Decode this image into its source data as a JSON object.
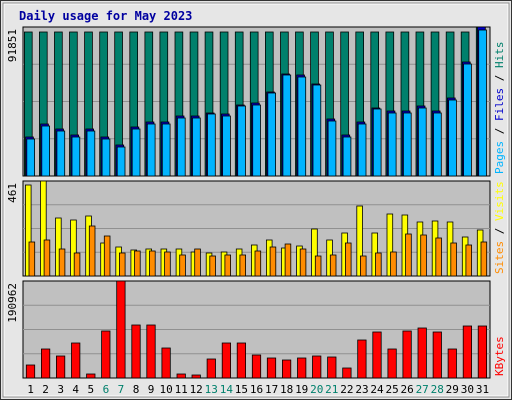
{
  "chart_data": {
    "title": "Daily usage for May 2023",
    "type": "bar",
    "categories": [
      "1",
      "2",
      "3",
      "4",
      "5",
      "6",
      "7",
      "8",
      "9",
      "10",
      "11",
      "12",
      "13",
      "14",
      "15",
      "16",
      "17",
      "18",
      "19",
      "20",
      "21",
      "22",
      "23",
      "24",
      "25",
      "26",
      "27",
      "28",
      "29",
      "30",
      "31"
    ],
    "weekend_days": [
      "6",
      "7",
      "13",
      "14",
      "20",
      "21",
      "27",
      "28"
    ],
    "panels": [
      {
        "id": "hits",
        "ymax_label": "91851",
        "ymax": 91851,
        "legend": [
          "Pages",
          "Files",
          "Hits"
        ],
        "series": [
          {
            "name": "Hits",
            "color": "#00806c",
            "values": [
              89000,
              89000,
              89000,
              89000,
              89000,
              89000,
              89000,
              89000,
              89000,
              89000,
              89000,
              89000,
              89000,
              89000,
              89000,
              89000,
              89000,
              89000,
              89000,
              89000,
              89000,
              89000,
              89000,
              89000,
              89000,
              89000,
              89000,
              89000,
              89000,
              89000,
              91851
            ]
          },
          {
            "name": "Files",
            "color": "#0000cc",
            "values": [
              24000,
              32000,
              29000,
              25000,
              29000,
              24000,
              19000,
              30000,
              33000,
              33000,
              37000,
              37000,
              39000,
              38000,
              44000,
              45000,
              52000,
              63000,
              62000,
              57000,
              35000,
              25000,
              33000,
              42000,
              40000,
              40000,
              43000,
              40000,
              48000,
              70000,
              91851
            ]
          },
          {
            "name": "Pages",
            "color": "#00b4ff",
            "values": [
              23000,
              31000,
              28000,
              24000,
              28000,
              23000,
              18000,
              29000,
              32000,
              32000,
              36000,
              36000,
              38000,
              37000,
              43000,
              44000,
              51000,
              62000,
              61000,
              56000,
              34000,
              24000,
              32000,
              41000,
              39000,
              39000,
              42000,
              39000,
              47000,
              69000,
              90000
            ]
          }
        ]
      },
      {
        "id": "visits",
        "ymax_label": "461",
        "ymax": 461,
        "legend": [
          "Sites",
          "Visits"
        ],
        "series": [
          {
            "name": "Visits",
            "color": "#ffff00",
            "values": [
              440,
              461,
              280,
              270,
              290,
              160,
              140,
              125,
              130,
              130,
              130,
              115,
              110,
              115,
              130,
              150,
              175,
              135,
              145,
              230,
              175,
              210,
              340,
              210,
              300,
              295,
              260,
              265,
              260,
              190,
              225
            ]
          },
          {
            "name": "Sites",
            "color": "#ff8c00",
            "values": [
              165,
              175,
              130,
              110,
              245,
              195,
              110,
              120,
              120,
              115,
              100,
              130,
              95,
              100,
              100,
              120,
              140,
              155,
              130,
              95,
              100,
              160,
              95,
              110,
              115,
              205,
              200,
              185,
              160,
              150,
              165
            ]
          }
        ]
      },
      {
        "id": "kbytes",
        "ymax_label": "190962",
        "ymax": 190962,
        "legend": [
          "KBytes"
        ],
        "series": [
          {
            "name": "KBytes",
            "color": "#ff0000",
            "values": [
              25000,
              57000,
              44000,
              68000,
              8000,
              92000,
              190962,
              104000,
              104000,
              60000,
              7000,
              6000,
              37000,
              68000,
              69000,
              46000,
              40000,
              36000,
              39000,
              44000,
              41000,
              20000,
              75000,
              90000,
              57000,
              92000,
              98000,
              90000,
              58000,
              103000,
              103000
            ]
          }
        ]
      }
    ]
  }
}
